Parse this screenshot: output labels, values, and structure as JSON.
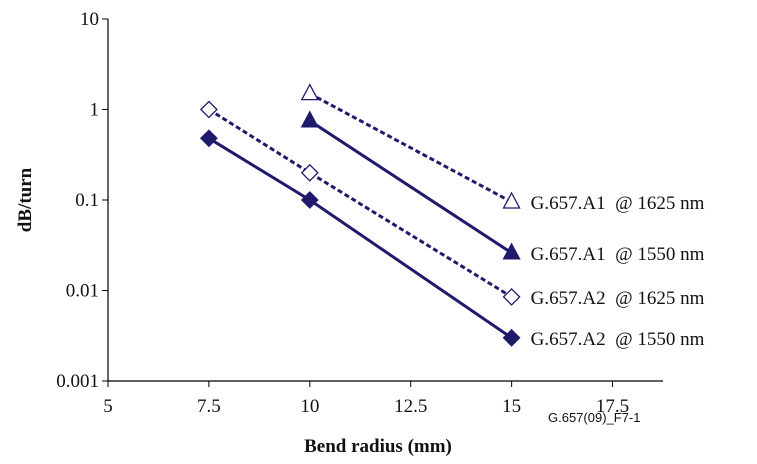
{
  "chart_data": {
    "type": "line",
    "title": "",
    "xlabel": "Bend radius (mm)",
    "ylabel": "dB/turn",
    "xlim": [
      5,
      18.75
    ],
    "ylim": [
      0.001,
      10
    ],
    "y_scale": "log",
    "x_ticks": [
      5,
      7.5,
      10,
      12.5,
      15,
      17.5
    ],
    "x_tick_labels": [
      "5",
      "7.5",
      "10",
      "12.5",
      "15",
      "17.5"
    ],
    "y_ticks": [
      0.001,
      0.01,
      0.1,
      1,
      10
    ],
    "y_tick_labels": [
      "0.001",
      "0.01",
      "0.1",
      "1",
      "10"
    ],
    "grid": false,
    "series": [
      {
        "name": "G.657.A1  @ 1625 nm",
        "x": [
          10,
          15
        ],
        "y": [
          1.5,
          0.095
        ],
        "line": "dashed",
        "marker": "open-triangle",
        "color": "#1f1a6b"
      },
      {
        "name": "G.657.A1  @ 1550 nm",
        "x": [
          10,
          15
        ],
        "y": [
          0.75,
          0.026
        ],
        "line": "solid",
        "marker": "filled-triangle",
        "color": "#1f1a6b"
      },
      {
        "name": "G.657.A2  @ 1625 nm",
        "x": [
          7.5,
          10,
          15
        ],
        "y": [
          1.0,
          0.2,
          0.0085
        ],
        "line": "dashed",
        "marker": "open-diamond",
        "color": "#1f1a6b"
      },
      {
        "name": "G.657.A2  @ 1550 nm",
        "x": [
          7.5,
          10,
          15
        ],
        "y": [
          0.48,
          0.1,
          0.003
        ],
        "line": "solid",
        "marker": "filled-diamond",
        "color": "#1f1a6b"
      }
    ]
  },
  "figure_id": "G.657(09)_F7-1"
}
